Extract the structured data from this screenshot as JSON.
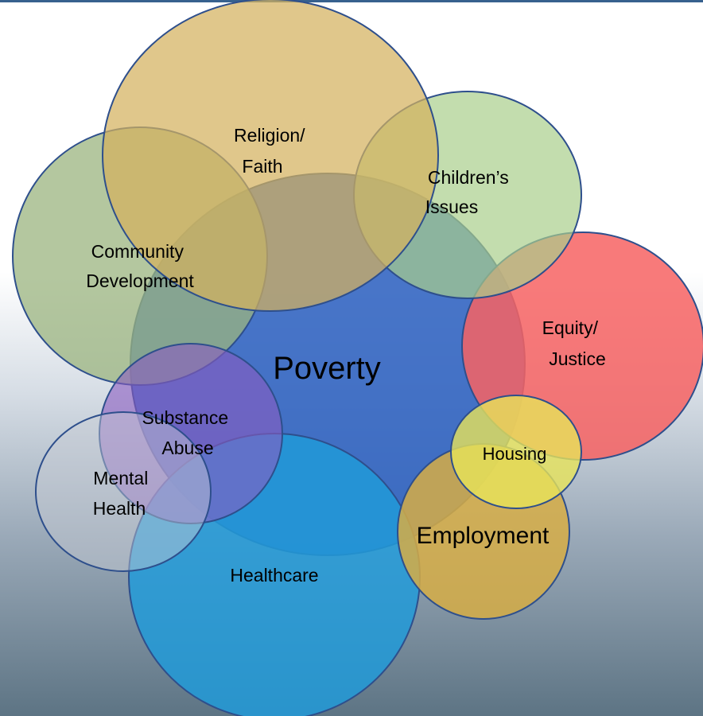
{
  "diagram": {
    "center": {
      "label": "Poverty",
      "color": "#2f62c0"
    },
    "bubbles": [
      {
        "id": "religion",
        "lines": [
          "Religion/",
          "Faith"
        ],
        "color": "#d4b25e"
      },
      {
        "id": "childrens-issues",
        "lines": [
          "Children’s",
          "Issues"
        ],
        "color": "#a9cf8b"
      },
      {
        "id": "community-development",
        "lines": [
          "Community",
          "Development"
        ],
        "color": "#9bb47f"
      },
      {
        "id": "equity-justice",
        "lines": [
          "Equity/",
          "Justice"
        ],
        "color": "#f76363"
      },
      {
        "id": "substance-abuse",
        "lines": [
          "Substance",
          "Abuse"
        ],
        "color": "#8a5cc1"
      },
      {
        "id": "mental-health",
        "lines": [
          "Mental",
          "Health"
        ],
        "color": "#c8cdd4"
      },
      {
        "id": "healthcare",
        "lines": [
          "Healthcare"
        ],
        "color": "#219ad8"
      },
      {
        "id": "housing",
        "lines": [
          "Housing"
        ],
        "color": "#e7e35a"
      },
      {
        "id": "employment",
        "lines": [
          "Employment"
        ],
        "color": "#d6ad45"
      }
    ],
    "outline_color": "#2e4f8c"
  }
}
